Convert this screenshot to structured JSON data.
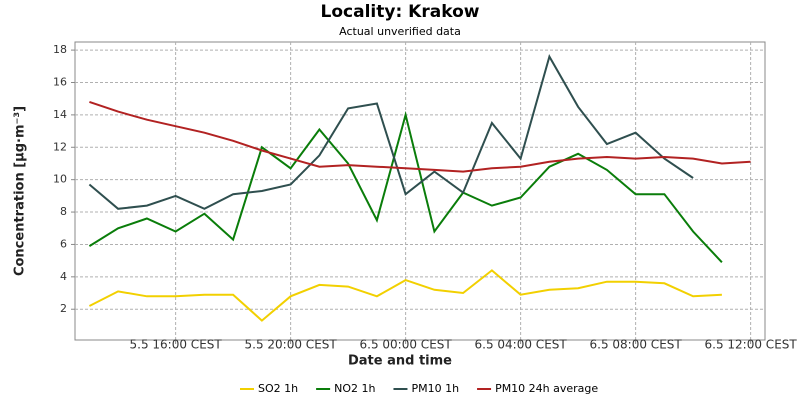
{
  "chart_data": {
    "type": "line",
    "title": "Locality: Krakow",
    "subtitle": "Actual unverified data",
    "xlabel": "Date and time",
    "ylabel": "Concentration [µg·m⁻³]",
    "categories": [
      null,
      null,
      null,
      "5.5 16:00 CEST",
      null,
      null,
      null,
      "5.5 20:00 CEST",
      null,
      null,
      null,
      "6.5 00:00 CEST",
      null,
      null,
      null,
      "6.5 04:00 CEST",
      null,
      null,
      null,
      "6.5 08:00 CEST",
      null,
      null,
      null,
      "6.5 12:00 CEST"
    ],
    "series": [
      {
        "name": "SO2 1h",
        "color": "#f2d000",
        "values": [
          2.2,
          3.1,
          2.8,
          2.8,
          2.9,
          2.9,
          1.3,
          2.8,
          3.5,
          3.4,
          2.8,
          3.8,
          3.2,
          3.0,
          4.4,
          2.9,
          3.2,
          3.3,
          3.7,
          3.7,
          3.6,
          2.8,
          2.9,
          null
        ]
      },
      {
        "name": "NO2 1h",
        "color": "#0a7d0a",
        "values": [
          5.9,
          7.0,
          7.6,
          6.8,
          7.9,
          6.3,
          12.0,
          10.7,
          13.1,
          11.0,
          7.5,
          14.0,
          6.8,
          9.2,
          8.4,
          8.9,
          10.8,
          11.6,
          10.6,
          9.1,
          9.1,
          6.8,
          4.9,
          null
        ]
      },
      {
        "name": "PM10 1h",
        "color": "#2f4f4f",
        "values": [
          9.7,
          8.2,
          8.4,
          9.0,
          8.2,
          9.1,
          9.3,
          9.7,
          11.5,
          14.4,
          14.7,
          9.1,
          10.5,
          9.2,
          13.5,
          11.3,
          17.6,
          14.5,
          12.2,
          12.9,
          11.3,
          10.1,
          null,
          null
        ]
      },
      {
        "name": "PM10 24h average",
        "color": "#b22222",
        "values": [
          14.8,
          14.2,
          13.7,
          13.3,
          12.9,
          12.4,
          11.8,
          11.3,
          10.8,
          10.9,
          10.8,
          10.7,
          10.6,
          10.5,
          10.7,
          10.8,
          11.1,
          11.3,
          11.4,
          11.3,
          11.4,
          11.3,
          11.0,
          11.1
        ]
      }
    ],
    "ylim": [
      0.1,
      18.5
    ],
    "yticks": [
      2,
      4,
      6,
      8,
      10,
      12,
      14,
      16,
      18
    ],
    "grid": true,
    "legend": "bottom"
  }
}
